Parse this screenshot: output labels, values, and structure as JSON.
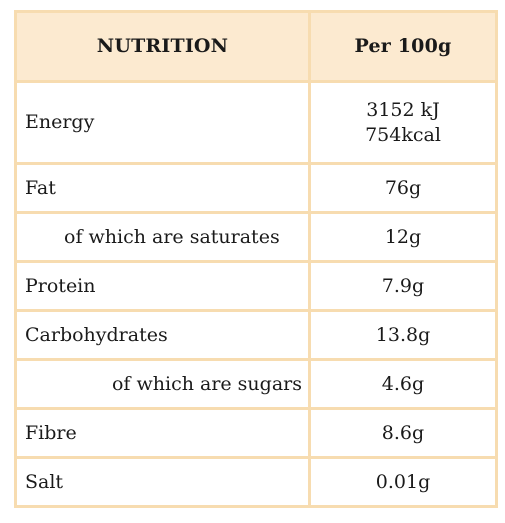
{
  "table": {
    "header": {
      "label": "NUTRITION",
      "value": "Per 100g"
    },
    "rows": [
      {
        "label": "Energy",
        "value_line1": "3152 kJ",
        "value_line2": "754kcal"
      },
      {
        "label": "Fat",
        "value": "76g"
      },
      {
        "label": "of which are saturates",
        "value": "12g"
      },
      {
        "label": "Protein",
        "value": "7.9g"
      },
      {
        "label": "Carbohydrates",
        "value": "13.8g"
      },
      {
        "label": "of which are sugars",
        "value": "4.6g"
      },
      {
        "label": "Fibre",
        "value": "8.6g"
      },
      {
        "label": "Salt",
        "value": "0.01g"
      }
    ]
  }
}
